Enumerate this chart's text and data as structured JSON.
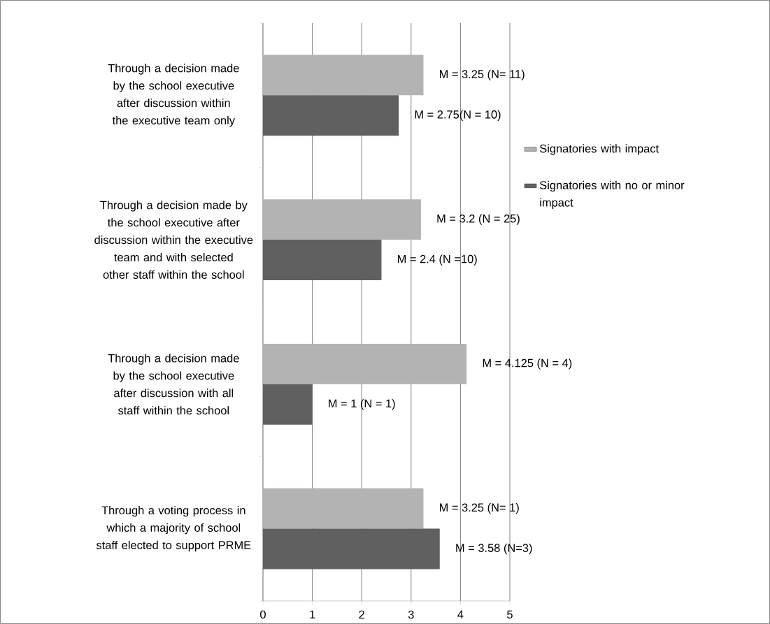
{
  "chart_data": {
    "type": "bar",
    "orientation": "horizontal",
    "categories": [
      "Through a decision made by the school executive after discussion within the executive team only",
      "Through a decision made by the school executive after discussion within the executive team and with selected other staff within the school",
      "Through a decision made by the school executive after discussion with all staff within the school",
      "Through a voting process in which a majority of school staff elected to support PRME"
    ],
    "series": [
      {
        "name": "Signatories with impact",
        "color": "#b3b3b3",
        "values": [
          3.25,
          3.2,
          4.125,
          3.25
        ],
        "value_labels": [
          "M = 3.25 (N= 11)",
          "M = 3.2 (N = 25)",
          "M = 4.125 (N = 4)",
          "M = 3.25 (N= 1)"
        ]
      },
      {
        "name": "Signatories with no or minor impact",
        "color": "#606060",
        "values": [
          2.75,
          2.4,
          1,
          3.58
        ],
        "value_labels": [
          "M = 2.75(N = 10)",
          "M = 2.4 (N =10)",
          "M = 1 (N = 1)",
          "M = 3.58 (N=3)"
        ]
      }
    ],
    "xlim": [
      0,
      5
    ],
    "xticks": [
      0,
      1,
      2,
      3,
      4,
      5
    ],
    "grid": "x",
    "legend": "right"
  }
}
